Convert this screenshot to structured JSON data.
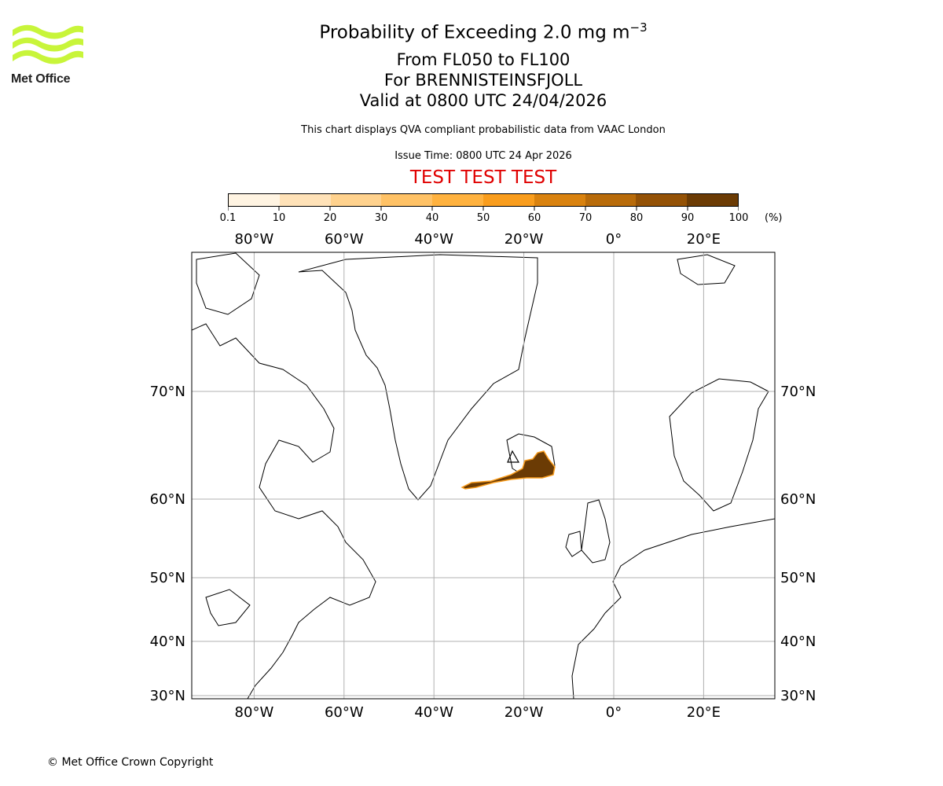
{
  "branding": {
    "logo_text": "Met Office",
    "logo_color": "#c8f53a"
  },
  "title": {
    "main_prefix": "Probability of Exceeding 2.0 mg m",
    "main_superscript": "−3",
    "line2": "From FL050 to FL100",
    "line3": "For BRENNISTEINSFJOLL",
    "line4": "Valid at 0800 UTC 24/04/2026"
  },
  "notes": {
    "description": "This chart displays QVA compliant probabilistic data from VAAC London",
    "issue_time": "Issue Time: 0800 UTC 24 Apr 2026"
  },
  "test_banner": {
    "text": "TEST TEST TEST",
    "color": "#e00000"
  },
  "colorbar": {
    "labels": [
      "0.1",
      "10",
      "20",
      "30",
      "40",
      "50",
      "60",
      "70",
      "80",
      "90",
      "100"
    ],
    "unit": "(%)",
    "colors": [
      "#fff4e2",
      "#ffe2b8",
      "#ffd28e",
      "#ffc266",
      "#ffb23f",
      "#f99d1d",
      "#d9820f",
      "#b86b0a",
      "#945206",
      "#6b3b04"
    ]
  },
  "map": {
    "lon_labels": [
      "80°W",
      "60°W",
      "40°W",
      "20°W",
      "0°",
      "20°E"
    ],
    "lon_values": [
      -80,
      -60,
      -40,
      -20,
      0,
      20
    ],
    "lat_labels": [
      "70°N",
      "60°N",
      "50°N",
      "40°N",
      "30°N"
    ],
    "lat_values": [
      70,
      60,
      50,
      40,
      30
    ],
    "plume_color": "#6b3b04",
    "plume_edge_color": "#f99d1d"
  },
  "footer": {
    "copyright": "© Met Office Crown Copyright"
  }
}
